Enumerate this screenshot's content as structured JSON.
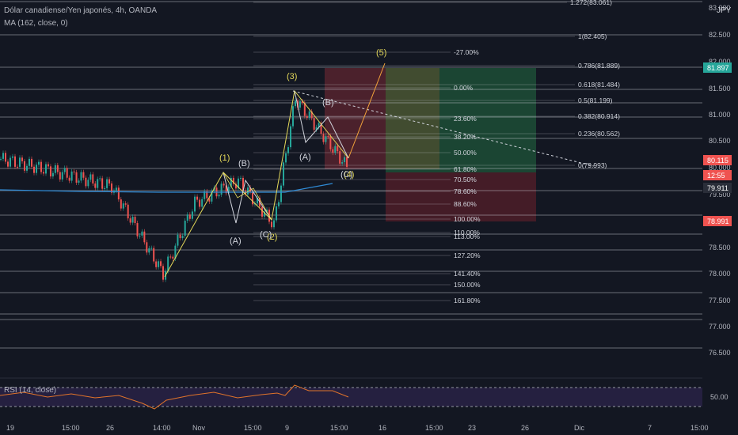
{
  "header": {
    "title": "Dólar canadiense/Yen japonés, 4h, OANDA",
    "indicator": "MA (162, close, 0)",
    "currency": "JPY",
    "rsi_label": "RSI (14, close)"
  },
  "price_axis": {
    "ticks": [
      "83.000",
      "82.500",
      "82.000",
      "81.500",
      "81.000",
      "80.500",
      "80.000",
      "79.500",
      "79.000",
      "78.500",
      "78.000",
      "77.500",
      "77.000",
      "76.500"
    ],
    "rsi_tick": "50.00",
    "price_tags": [
      {
        "label": "81.897",
        "color": "#26a69a"
      },
      {
        "label": "80.115",
        "color": "#ef5350"
      },
      {
        "label": "12:55",
        "color": "#ef5350"
      },
      {
        "label": "79.911",
        "color": "#2a2e39"
      },
      {
        "label": "78.991",
        "color": "#ef5350"
      }
    ]
  },
  "time_axis": [
    "19",
    "15:00",
    "26",
    "14:00",
    "Nov",
    "15:00",
    "9",
    "15:00",
    "16",
    "15:00",
    "23",
    "26",
    "Dic",
    "7",
    "15:00"
  ],
  "fib_levels": [
    {
      "label": "1.272(83.061)"
    },
    {
      "label": "1(82.405)"
    },
    {
      "label": "-27.00%"
    },
    {
      "label": "0.786(81.889)"
    },
    {
      "label": "0.618(81.484)"
    },
    {
      "label": "0.00%"
    },
    {
      "label": "0.5(81.199)"
    },
    {
      "label": "0.382(80.914)"
    },
    {
      "label": "23.60%"
    },
    {
      "label": "0.236(80.562)"
    },
    {
      "label": "38.20%"
    },
    {
      "label": "50.00%"
    },
    {
      "label": "0(79.993)"
    },
    {
      "label": "61.80%"
    },
    {
      "label": "70.50%"
    },
    {
      "label": "78.60%"
    },
    {
      "label": "88.60%"
    },
    {
      "label": "100.00%"
    },
    {
      "label": "110.00%"
    },
    {
      "label": "113.00%"
    },
    {
      "label": "127.20%"
    },
    {
      "label": "141.40%"
    },
    {
      "label": "150.00%"
    },
    {
      "label": "161.80%"
    }
  ],
  "wave_labels": [
    "(1)",
    "(2)",
    "(3)",
    "(4)",
    "(5)",
    "(A)",
    "(B)",
    "(C)",
    "(A)",
    "(B)",
    "(C)"
  ],
  "chart_data": {
    "type": "line",
    "title": "Dólar canadiense/Yen japonés, 4h, OANDA",
    "ylim": [
      76.3,
      83.2
    ],
    "series": [
      {
        "name": "CADJPY",
        "x": [
          "19",
          "15:00",
          "26",
          "14:00",
          "Nov",
          "15:00",
          "9",
          "15:00",
          "16"
        ],
        "values": [
          80.3,
          80.1,
          79.8,
          78.2,
          79.5,
          79.9,
          79.1,
          81.4,
          80.1
        ]
      }
    ],
    "annotations": {
      "last_price": 80.115,
      "ma_value": 79.911,
      "stop": 78.991,
      "target": 81.897
    }
  }
}
